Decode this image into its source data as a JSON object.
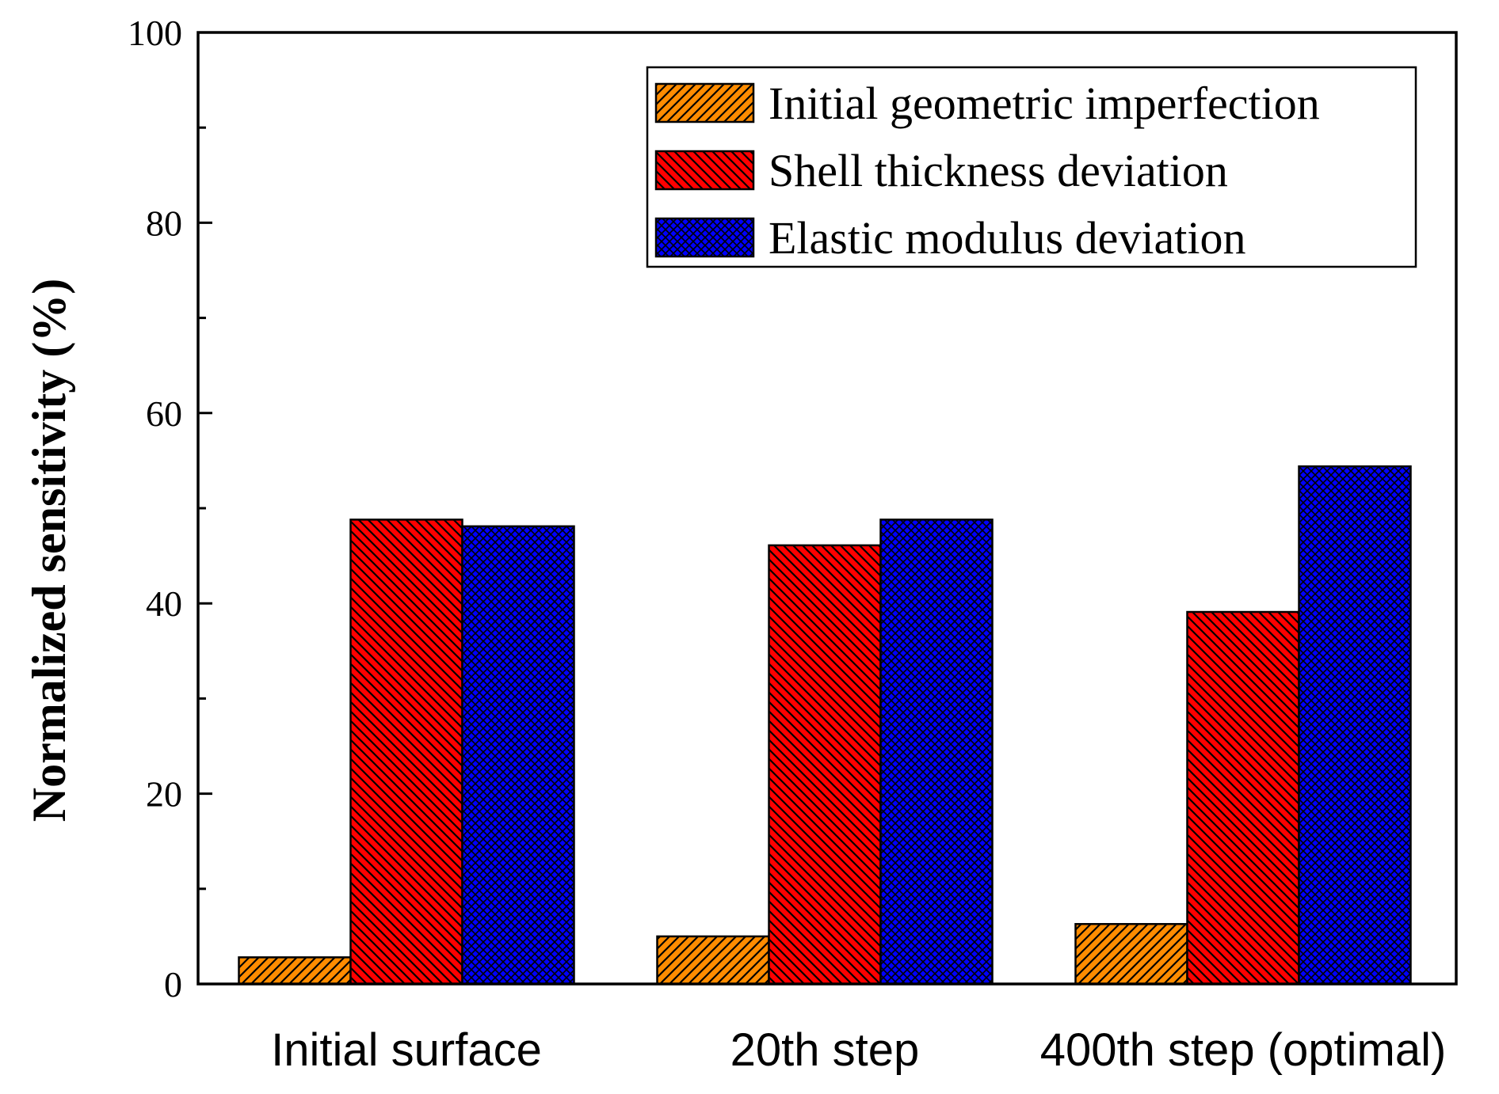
{
  "chart_data": {
    "type": "bar",
    "title": "",
    "xlabel": "",
    "ylabel": "Normalized sensitivity (%)",
    "ylim": [
      0,
      100
    ],
    "yticks": [
      0,
      20,
      40,
      60,
      80,
      100
    ],
    "ytick_labels": [
      "0",
      "20",
      "40",
      "60",
      "80",
      "100"
    ],
    "grid": false,
    "legend_position": "top-right",
    "categories": [
      "Initial surface",
      "20th step",
      "400th step (optimal)"
    ],
    "series": [
      {
        "name": "Initial geometric imperfection",
        "values": [
          2.8,
          5.0,
          6.3
        ],
        "color": "#ff8c00",
        "pattern": "diagonal-right"
      },
      {
        "name": "Shell thickness deviation",
        "values": [
          48.8,
          46.1,
          39.1
        ],
        "color": "#ff0000",
        "pattern": "diagonal-left"
      },
      {
        "name": "Elastic modulus deviation",
        "values": [
          48.1,
          48.8,
          54.4
        ],
        "color": "#0000ff",
        "pattern": "crosshatch"
      }
    ]
  }
}
